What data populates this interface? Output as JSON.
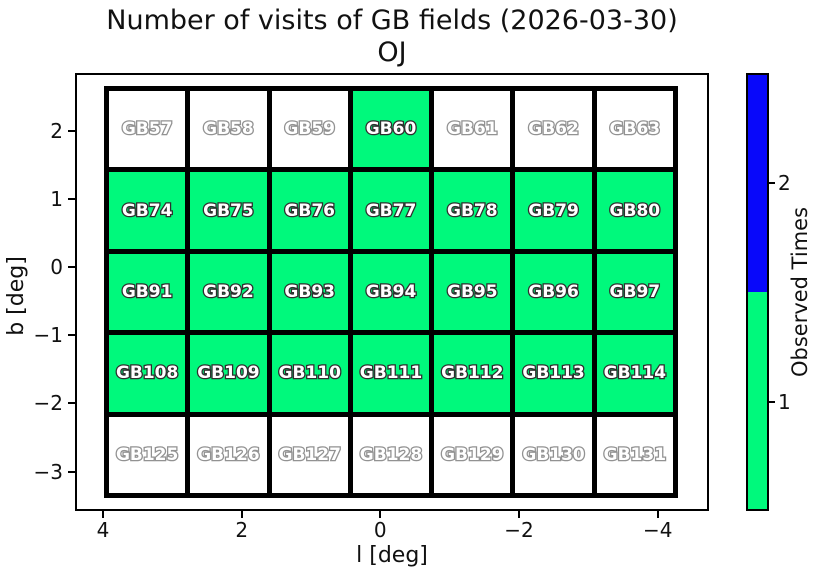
{
  "title": {
    "line1": "Number of visits of GB fields (2026-03-30)",
    "line2": "OJ"
  },
  "axes": {
    "xlabel": "l [deg]",
    "ylabel": "b [deg]",
    "x_tick_labels": [
      "4",
      "2",
      "0",
      "−2",
      "−4"
    ],
    "y_tick_labels": [
      "2",
      "1",
      "0",
      "−1",
      "−2",
      "−3"
    ]
  },
  "colorbar": {
    "label": "Observed Times",
    "tick_labels": [
      "2",
      "1"
    ],
    "segments": [
      {
        "value": 2,
        "color": "#0808fa"
      },
      {
        "value": 1,
        "color": "#00f97c"
      }
    ]
  },
  "colors": {
    "observed_fill": "#00f97c",
    "unobserved_fill": "#ffffff",
    "grid_line": "#000000",
    "label_text": "#ffffff",
    "label_stroke_observed": "#2e2e2e",
    "label_stroke_unobserved": "#929292"
  },
  "chart_data": {
    "type": "heatmap",
    "title": "Number of visits of GB fields (2026-03-30)",
    "subtitle": "OJ",
    "xlabel": "l [deg]",
    "ylabel": "b [deg]",
    "colorbar_label": "Observed Times",
    "x_ticks": [
      4,
      2,
      0,
      -2,
      -4
    ],
    "y_ticks": [
      2,
      1,
      0,
      -1,
      -2,
      -3
    ],
    "x_axis_reversed": true,
    "colorbar_ticks": [
      1,
      2
    ],
    "fields": [
      [
        "GB57",
        "GB58",
        "GB59",
        "GB60",
        "GB61",
        "GB62",
        "GB63"
      ],
      [
        "GB74",
        "GB75",
        "GB76",
        "GB77",
        "GB78",
        "GB79",
        "GB80"
      ],
      [
        "GB91",
        "GB92",
        "GB93",
        "GB94",
        "GB95",
        "GB96",
        "GB97"
      ],
      [
        "GB108",
        "GB109",
        "GB110",
        "GB111",
        "GB112",
        "GB113",
        "GB114"
      ],
      [
        "GB125",
        "GB126",
        "GB127",
        "GB128",
        "GB129",
        "GB130",
        "GB131"
      ]
    ],
    "values": [
      [
        0,
        0,
        0,
        1,
        0,
        0,
        0
      ],
      [
        1,
        1,
        1,
        1,
        1,
        1,
        1
      ],
      [
        1,
        1,
        1,
        1,
        1,
        1,
        1
      ],
      [
        1,
        1,
        1,
        1,
        1,
        1,
        1
      ],
      [
        0,
        0,
        0,
        0,
        0,
        0,
        0
      ]
    ],
    "value_colors": {
      "0": "#ffffff",
      "1": "#00f97c",
      "2": "#0808fa"
    },
    "legend_position": "right-colorbar"
  }
}
